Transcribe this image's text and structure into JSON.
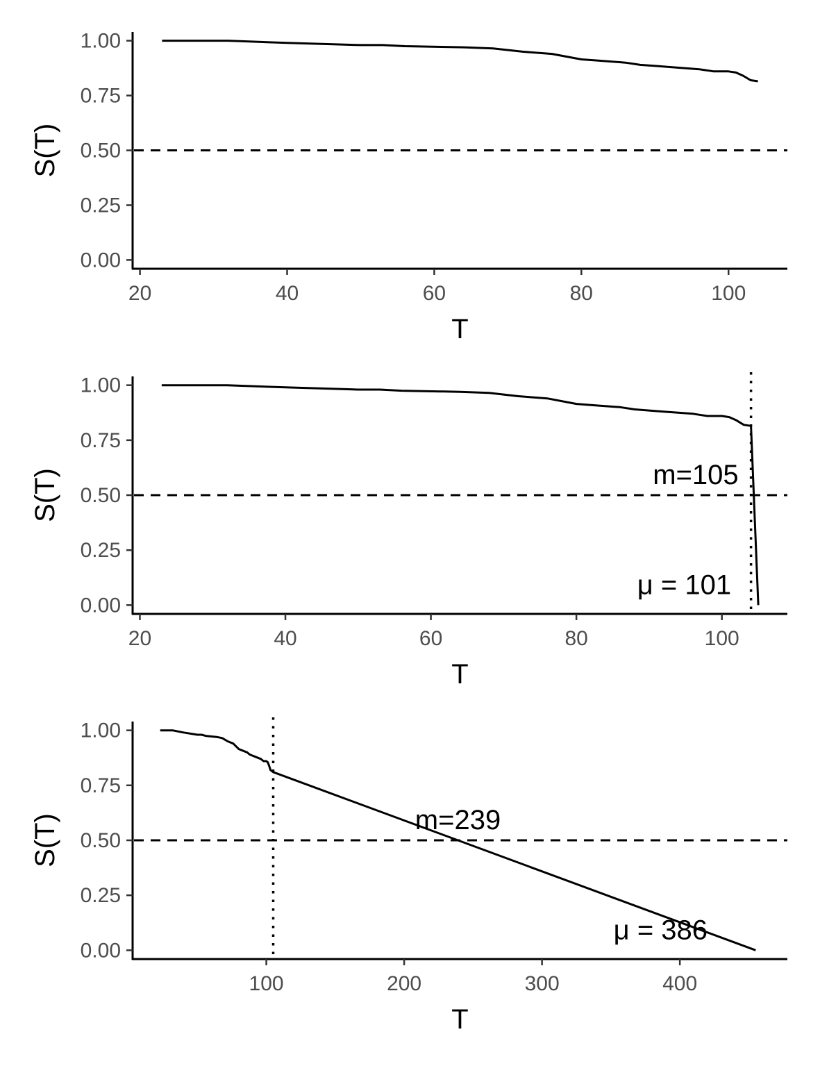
{
  "colors": {
    "line": "#000000",
    "tick_text": "#4d4d4d",
    "background": "#ffffff"
  },
  "chart_data": [
    {
      "type": "line",
      "xlabel": "T",
      "ylabel": "S(T)",
      "xlim": [
        19,
        108
      ],
      "ylim": [
        -0.04,
        1.04
      ],
      "xticks": [
        20,
        40,
        60,
        80,
        100
      ],
      "xtick_labels": [
        "20",
        "40",
        "60",
        "80",
        "100"
      ],
      "yticks": [
        0,
        0.25,
        0.5,
        0.75,
        1
      ],
      "ytick_labels": [
        "0.00",
        "0.25",
        "0.50",
        "0.75",
        "1.00"
      ],
      "grid": false,
      "reference_lines": [
        {
          "orientation": "horizontal",
          "value": 0.5,
          "style": "dashed"
        }
      ],
      "series": [
        {
          "x": [
            23,
            32,
            40,
            50,
            53,
            56,
            64,
            68,
            72,
            76,
            80,
            82,
            86,
            88,
            90,
            92,
            94,
            96,
            98,
            100,
            101,
            102,
            103,
            104
          ],
          "y": [
            1.0,
            1.0,
            0.99,
            0.98,
            0.98,
            0.975,
            0.97,
            0.965,
            0.95,
            0.94,
            0.915,
            0.91,
            0.9,
            0.89,
            0.885,
            0.88,
            0.875,
            0.87,
            0.86,
            0.86,
            0.855,
            0.84,
            0.82,
            0.815
          ]
        }
      ]
    },
    {
      "type": "line",
      "xlabel": "T",
      "ylabel": "S(T)",
      "xlim": [
        19,
        109
      ],
      "ylim": [
        -0.04,
        1.04
      ],
      "xticks": [
        20,
        40,
        60,
        80,
        100
      ],
      "xtick_labels": [
        "20",
        "40",
        "60",
        "80",
        "100"
      ],
      "yticks": [
        0,
        0.25,
        0.5,
        0.75,
        1
      ],
      "ytick_labels": [
        "0.00",
        "0.25",
        "0.50",
        "0.75",
        "1.00"
      ],
      "grid": false,
      "reference_lines": [
        {
          "orientation": "horizontal",
          "value": 0.5,
          "style": "dashed"
        },
        {
          "orientation": "vertical",
          "value": 104,
          "style": "dotted"
        }
      ],
      "series": [
        {
          "x": [
            23,
            32,
            40,
            50,
            53,
            56,
            64,
            68,
            72,
            76,
            80,
            82,
            86,
            88,
            90,
            92,
            94,
            96,
            98,
            100,
            101,
            102,
            103,
            104,
            105
          ],
          "y": [
            1.0,
            1.0,
            0.99,
            0.98,
            0.98,
            0.975,
            0.97,
            0.965,
            0.95,
            0.94,
            0.915,
            0.91,
            0.9,
            0.89,
            0.885,
            0.88,
            0.875,
            0.87,
            0.86,
            0.86,
            0.855,
            0.84,
            0.82,
            0.815,
            0.0
          ]
        }
      ],
      "annotations": [
        {
          "text": "m=105",
          "x": 104,
          "y": 0.5,
          "align": "end",
          "position": "above"
        },
        {
          "text": "μ = 101",
          "x": 103,
          "y": 0.0,
          "align": "end",
          "position": "above"
        }
      ]
    },
    {
      "type": "line",
      "xlabel": "T",
      "ylabel": "S(T)",
      "xlim": [
        3,
        478
      ],
      "ylim": [
        -0.04,
        1.04
      ],
      "xticks": [
        100,
        200,
        300,
        400
      ],
      "xtick_labels": [
        "100",
        "200",
        "300",
        "400"
      ],
      "yticks": [
        0,
        0.25,
        0.5,
        0.75,
        1
      ],
      "ytick_labels": [
        "0.00",
        "0.25",
        "0.50",
        "0.75",
        "1.00"
      ],
      "grid": false,
      "reference_lines": [
        {
          "orientation": "horizontal",
          "value": 0.5,
          "style": "dashed"
        },
        {
          "orientation": "vertical",
          "value": 105,
          "style": "dotted"
        }
      ],
      "series": [
        {
          "x": [
            23,
            32,
            40,
            50,
            53,
            56,
            64,
            68,
            72,
            76,
            80,
            82,
            86,
            88,
            90,
            92,
            94,
            96,
            98,
            100,
            101,
            102,
            103,
            104,
            105,
            455
          ],
          "y": [
            1.0,
            1.0,
            0.99,
            0.98,
            0.98,
            0.975,
            0.97,
            0.965,
            0.95,
            0.94,
            0.915,
            0.91,
            0.9,
            0.89,
            0.885,
            0.88,
            0.875,
            0.87,
            0.86,
            0.86,
            0.855,
            0.84,
            0.82,
            0.815,
            0.81,
            0.0
          ]
        }
      ],
      "annotations": [
        {
          "text": "m=239",
          "x": 239,
          "y": 0.5,
          "align": "middle",
          "position": "above"
        },
        {
          "text": "μ = 386",
          "x": 386,
          "y": 0.0,
          "align": "middle",
          "position": "above"
        }
      ]
    }
  ]
}
